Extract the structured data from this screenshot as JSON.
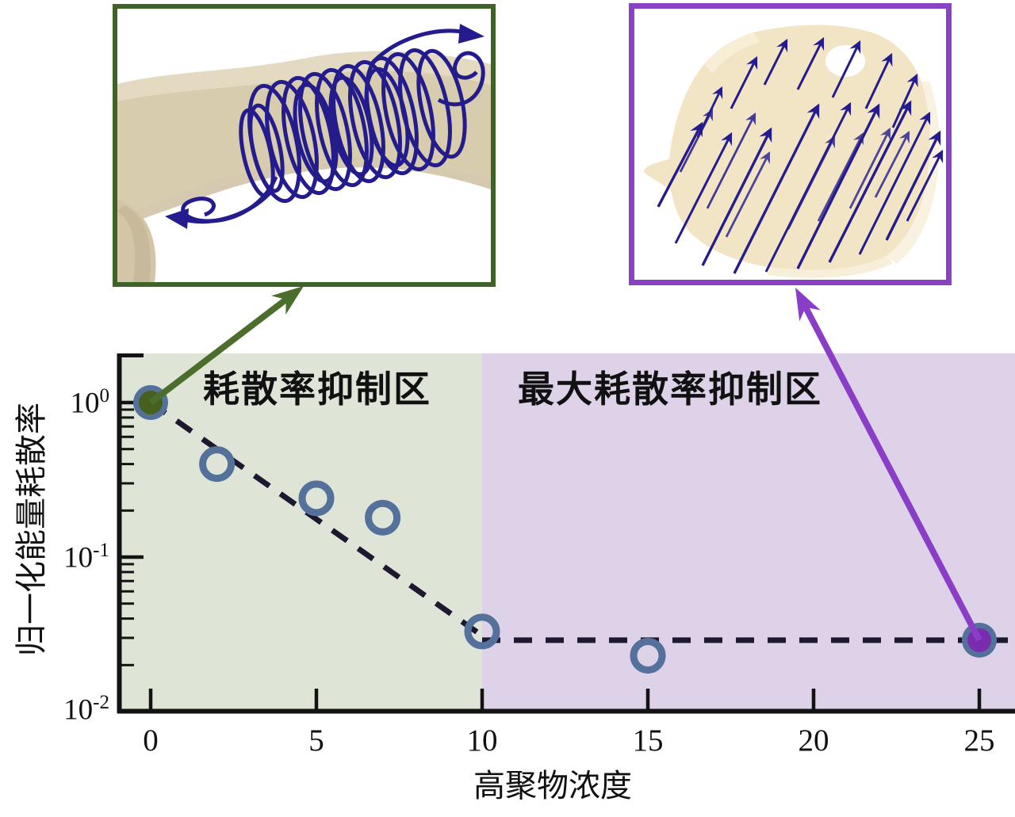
{
  "insets": {
    "turbulent": {
      "icon": "vortex-streamlines-icon",
      "border_color": "#3d6327",
      "streamline_color": "#241c8c"
    },
    "laminar": {
      "icon": "parallel-streamlines-icon",
      "border_color": "#8a42c4",
      "streamline_color": "#241c8c"
    }
  },
  "chart_data": {
    "type": "scatter",
    "title": "",
    "xlabel": "高聚物浓度",
    "ylabel": "归一化能量耗散率",
    "yscale": "log",
    "grid": false,
    "xlim": [
      -1,
      26.1
    ],
    "ylim": [
      0.01,
      2.1
    ],
    "x_ticks": [
      0,
      5,
      10,
      15,
      20,
      25
    ],
    "y_ticks": [
      {
        "base": "10",
        "exp": "0",
        "value": 1
      },
      {
        "base": "10",
        "exp": "-1",
        "value": 0.1
      },
      {
        "base": "10",
        "exp": "-2",
        "value": 0.01
      }
    ],
    "regions": [
      {
        "label": "耗散率抑制区",
        "x_start": -1,
        "x_end": 10,
        "fill": "#dfe5d6"
      },
      {
        "label": "最大耗散率抑制区",
        "x_start": 10,
        "x_end": 26.1,
        "fill": "#ddd2e8"
      }
    ],
    "series": [
      {
        "name": "open-circles",
        "marker": "open-circle",
        "color": "#54719c",
        "points": [
          [
            2,
            0.4
          ],
          [
            5,
            0.24
          ],
          [
            7,
            0.18
          ],
          [
            10,
            0.033
          ],
          [
            15,
            0.023
          ]
        ]
      },
      {
        "name": "filled-green-circle",
        "marker": "filled-circle",
        "ring_color": "#54719c",
        "fill_color": "#46611e",
        "points": [
          [
            0,
            1.0
          ]
        ]
      },
      {
        "name": "filled-purple-circle",
        "marker": "filled-circle",
        "ring_color": "#54719c",
        "fill_color": "#7b2cae",
        "points": [
          [
            25,
            0.029
          ]
        ]
      }
    ],
    "trend_lines": [
      {
        "style": "dashed",
        "color": "#1d1730",
        "points": [
          [
            0,
            1.0
          ],
          [
            10,
            0.031
          ]
        ]
      },
      {
        "style": "dashed",
        "color": "#1d1730",
        "points": [
          [
            10,
            0.029
          ],
          [
            26.1,
            0.029
          ]
        ]
      }
    ],
    "annotations": [
      {
        "name": "arrow-to-vortex-inset",
        "color": "#4b6e2c",
        "from_point": [
          0,
          1.0
        ]
      },
      {
        "name": "arrow-to-laminar-inset",
        "color": "#8a3ec8",
        "from_point": [
          25,
          0.029
        ]
      }
    ]
  }
}
